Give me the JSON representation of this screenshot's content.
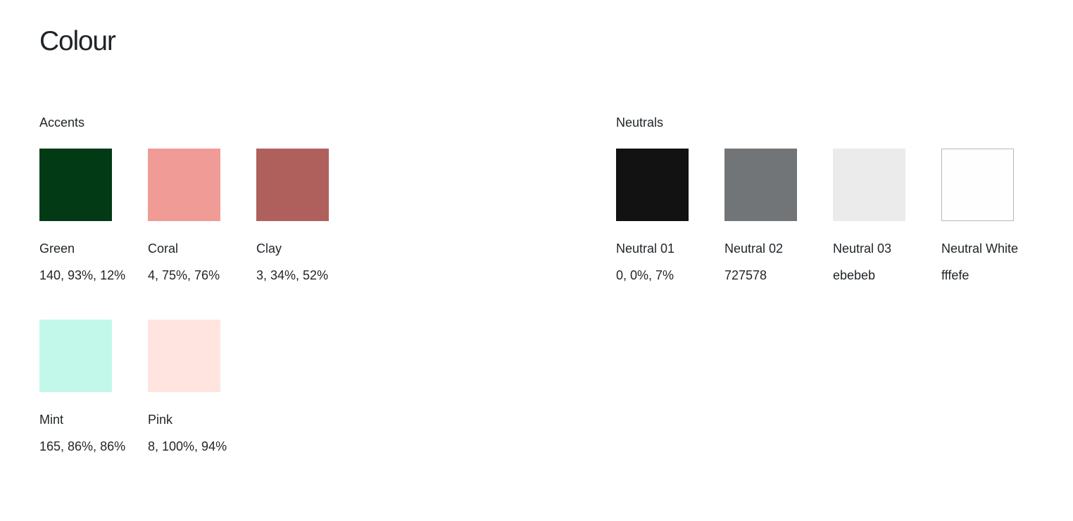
{
  "page": {
    "title": "Colour"
  },
  "accents": {
    "title": "Accents",
    "swatches": [
      {
        "name": "Green",
        "value": "140, 93%, 12%",
        "color": "#033a16"
      },
      {
        "name": "Coral",
        "value": "4, 75%, 76%",
        "color": "#f09b96"
      },
      {
        "name": "Clay",
        "value": "3, 34%, 52%",
        "color": "#b0605c"
      },
      {
        "name": "Mint",
        "value": "165, 86%, 86%",
        "color": "#c2f8ea"
      },
      {
        "name": "Pink",
        "value": "8, 100%, 94%",
        "color": "#ffe4df"
      }
    ]
  },
  "neutrals": {
    "title": "Neutrals",
    "swatches": [
      {
        "name": "Neutral 01",
        "value": "0, 0%, 7%",
        "color": "#121212"
      },
      {
        "name": "Neutral 02",
        "value": "727578",
        "color": "#727578"
      },
      {
        "name": "Neutral 03",
        "value": "ebebeb",
        "color": "#ebebeb"
      },
      {
        "name": "Neutral White",
        "value": "fffefe",
        "color": "#fffefe"
      }
    ]
  }
}
